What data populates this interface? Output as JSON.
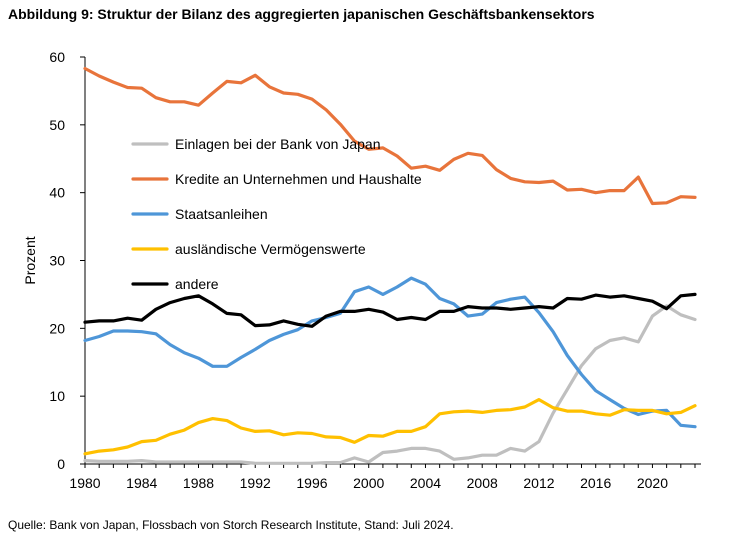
{
  "title": "Abbildung 9: Struktur der Bilanz des aggregierten japanischen Geschäftsbankensektors",
  "source": "Quelle: Bank von Japan, Flossbach von Storch Research Institute, Stand: Juli 2024.",
  "chart_data": {
    "type": "line",
    "title": "Abbildung 9: Struktur der Bilanz des aggregierten japanischen Geschäftsbankensektors",
    "xlabel": "",
    "ylabel": "Prozent",
    "xlim": [
      1980,
      2023
    ],
    "ylim": [
      0,
      60
    ],
    "xticks": [
      "1980",
      "1984",
      "1988",
      "1992",
      "1996",
      "2000",
      "2004",
      "2008",
      "2012",
      "2016",
      "2020"
    ],
    "yticks": [
      "0",
      "10",
      "20",
      "30",
      "40",
      "50",
      "60"
    ],
    "legend_position": "center-left inside",
    "x": [
      1980,
      1981,
      1982,
      1983,
      1984,
      1985,
      1986,
      1987,
      1988,
      1989,
      1990,
      1991,
      1992,
      1993,
      1994,
      1995,
      1996,
      1997,
      1998,
      1999,
      2000,
      2001,
      2002,
      2003,
      2004,
      2005,
      2006,
      2007,
      2008,
      2009,
      2010,
      2011,
      2012,
      2013,
      2014,
      2015,
      2016,
      2017,
      2018,
      2019,
      2020,
      2021,
      2022,
      2023
    ],
    "series": [
      {
        "name": "Einlagen bei der Bank von Japan",
        "color": "#bfbfbf",
        "values": [
          0.5,
          0.4,
          0.4,
          0.4,
          0.5,
          0.3,
          0.3,
          0.3,
          0.3,
          0.3,
          0.3,
          0.3,
          0.1,
          0.1,
          0.1,
          0.1,
          0.1,
          0.2,
          0.2,
          0.9,
          0.3,
          1.7,
          1.9,
          2.3,
          2.3,
          1.9,
          0.7,
          0.9,
          1.3,
          1.3,
          2.3,
          1.9,
          3.3,
          7.5,
          11,
          14.5,
          17,
          18.2,
          18.6,
          18,
          21.8,
          23.3,
          22,
          21.3
        ]
      },
      {
        "name": "Kredite an Unternehmen und Haushalte",
        "color": "#e8743b",
        "values": [
          58.3,
          57.2,
          56.3,
          55.5,
          55.4,
          54,
          53.4,
          53.4,
          52.9,
          54.7,
          56.4,
          56.2,
          57.3,
          55.6,
          54.7,
          54.5,
          53.8,
          52.2,
          50.1,
          47.6,
          46.4,
          46.6,
          45.4,
          43.6,
          43.9,
          43.3,
          44.9,
          45.8,
          45.5,
          43.4,
          42.1,
          41.6,
          41.5,
          41.7,
          40.4,
          40.5,
          40,
          40.3,
          40.3,
          42.3,
          38.4,
          38.5,
          39.4,
          39.3
        ]
      },
      {
        "name": "Staatsanleihen",
        "color": "#4e96d8",
        "values": [
          18.2,
          18.8,
          19.6,
          19.6,
          19.5,
          19.2,
          17.6,
          16.4,
          15.6,
          14.4,
          14.4,
          15.7,
          16.9,
          18.2,
          19.1,
          19.8,
          21.1,
          21.6,
          22.2,
          25.4,
          26.1,
          25,
          26.1,
          27.4,
          26.5,
          24.4,
          23.6,
          21.8,
          22.1,
          23.8,
          24.3,
          24.6,
          22.3,
          19.5,
          16,
          13.2,
          10.8,
          9.5,
          8.2,
          7.3,
          7.8,
          7.9,
          5.7,
          5.5
        ]
      },
      {
        "name": "ausländische Vermögenswerte",
        "color": "#ffc000",
        "values": [
          1.5,
          1.9,
          2.1,
          2.5,
          3.3,
          3.5,
          4.4,
          5,
          6.1,
          6.7,
          6.4,
          5.3,
          4.8,
          4.9,
          4.3,
          4.6,
          4.5,
          4,
          3.9,
          3.2,
          4.2,
          4.1,
          4.8,
          4.8,
          5.5,
          7.4,
          7.7,
          7.8,
          7.6,
          7.9,
          8,
          8.4,
          9.5,
          8.3,
          7.8,
          7.8,
          7.4,
          7.2,
          8,
          7.9,
          7.9,
          7.4,
          7.6,
          8.6
        ]
      },
      {
        "name": "andere",
        "color": "#000000",
        "values": [
          20.9,
          21.1,
          21.1,
          21.5,
          21.2,
          22.8,
          23.8,
          24.4,
          24.8,
          23.6,
          22.2,
          22,
          20.4,
          20.5,
          21.1,
          20.6,
          20.3,
          21.8,
          22.5,
          22.5,
          22.8,
          22.4,
          21.3,
          21.6,
          21.3,
          22.5,
          22.5,
          23.2,
          23,
          23,
          22.8,
          23,
          23.2,
          23,
          24.4,
          24.3,
          24.9,
          24.6,
          24.8,
          24.4,
          24,
          22.9,
          24.8,
          25
        ]
      }
    ]
  }
}
